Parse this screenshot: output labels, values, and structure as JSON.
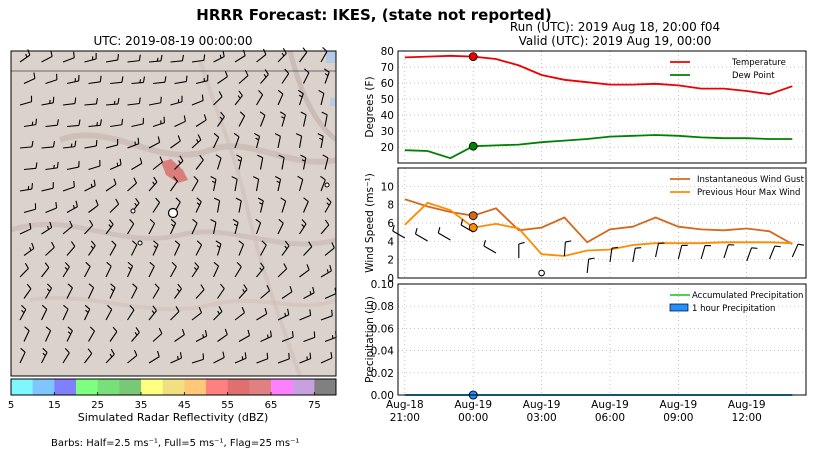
{
  "figure": {
    "title": "HRRR Forecast: IKES, (state not reported)",
    "run_line": "Run (UTC): 2019 Aug 18, 20:00 f04",
    "valid_line": "Valid (UTC): 2019 Aug 19, 00:00"
  },
  "map": {
    "title": "UTC: 2019-08-19 00:00:00",
    "colorbar_label": "Simulated Radar Reflectivity (dBZ)",
    "colorbar_ticks": [
      "5",
      "15",
      "25",
      "35",
      "45",
      "55",
      "65",
      "75"
    ],
    "colorbar_colors": [
      "#7ff7ff",
      "#7fc6ff",
      "#8080ff",
      "#7fff7f",
      "#78e078",
      "#78c878",
      "#ffff80",
      "#f0e080",
      "#ffc878",
      "#ff8080",
      "#e07070",
      "#e08080",
      "#ff80ff",
      "#c8a0e0",
      "#808080"
    ],
    "barb_note": "Barbs: Half=2.5 ms⁻¹, Full=5 ms⁻¹, Flag=25 ms⁻¹"
  },
  "x_tick_labels": [
    {
      "date": "Aug-18",
      "time": "21:00"
    },
    {
      "date": "Aug-19",
      "time": "00:00"
    },
    {
      "date": "Aug-19",
      "time": "03:00"
    },
    {
      "date": "Aug-19",
      "time": "06:00"
    },
    {
      "date": "Aug-19",
      "time": "09:00"
    },
    {
      "date": "Aug-19",
      "time": "12:00"
    }
  ],
  "colors": {
    "temperature": "#ee0000",
    "dew_point": "#008000",
    "gust": "#d2691e",
    "max_wind": "#ff8c00",
    "accum_precip": "#32cd32",
    "hourly_precip": "#1e90ff"
  },
  "chart_data": [
    {
      "type": "line",
      "ylabel": "Degrees (F)",
      "ylim": [
        10,
        80
      ],
      "yticks": [
        20,
        30,
        40,
        50,
        60,
        70,
        80
      ],
      "x": [
        -3,
        -2,
        -1,
        0,
        1,
        2,
        3,
        4,
        5,
        6,
        7,
        8,
        9,
        10,
        11,
        12,
        13,
        14
      ],
      "series": [
        {
          "name": "Temperature",
          "values": [
            76,
            76.5,
            77,
            76.5,
            75,
            71,
            65,
            62,
            60.5,
            59,
            59,
            59.5,
            58.5,
            56.5,
            56.5,
            55,
            53,
            58
          ]
        },
        {
          "name": "Dew Point",
          "values": [
            18,
            17.5,
            13,
            20.5,
            21,
            21.5,
            23,
            24,
            25,
            26.5,
            27,
            27.5,
            27,
            26,
            25.5,
            25.5,
            25,
            25
          ]
        }
      ],
      "marker_x": 0,
      "legend": "top-right",
      "grid": true
    },
    {
      "type": "line",
      "ylabel": "Wind Speed (ms⁻¹)",
      "ylim": [
        0,
        12
      ],
      "yticks": [
        0,
        2,
        4,
        6,
        8,
        10
      ],
      "x": [
        -3,
        -2,
        -1,
        0,
        1,
        2,
        3,
        4,
        5,
        6,
        7,
        8,
        9,
        10,
        11,
        12,
        13,
        14
      ],
      "series": [
        {
          "name": "Instantaneous Wind Gust",
          "values": [
            8.6,
            7.8,
            7.2,
            6.8,
            7.6,
            5.2,
            5.5,
            6.6,
            3.9,
            5.3,
            5.6,
            6.6,
            5.6,
            5.3,
            5.2,
            5.4,
            5.1,
            3.7
          ]
        },
        {
          "name": "Previous Hour Max Wind",
          "values": [
            5.8,
            8.2,
            7.4,
            5.5,
            5.9,
            5.4,
            2.6,
            2.4,
            3.0,
            3.1,
            3.6,
            3.8,
            3.8,
            3.8,
            3.9,
            3.9,
            3.9,
            3.8
          ]
        }
      ],
      "marker_x": 0,
      "legend": "top-right",
      "grid": true
    },
    {
      "type": "line",
      "ylabel": "Precipitation (in)",
      "ylim": [
        0,
        0.1
      ],
      "yticks": [
        "0.00",
        "0.02",
        "0.04",
        "0.06",
        "0.08",
        "0.10"
      ],
      "x": [
        -3,
        -2,
        -1,
        0,
        1,
        2,
        3,
        4,
        5,
        6,
        7,
        8,
        9,
        10,
        11,
        12,
        13,
        14
      ],
      "series": [
        {
          "name": "Accumulated Precipitation",
          "values": [
            0,
            0,
            0,
            0,
            0,
            0,
            0,
            0,
            0,
            0,
            0,
            0,
            0,
            0,
            0,
            0,
            0,
            0
          ]
        },
        {
          "name": "1 hour Precipitation",
          "values": [
            0,
            0,
            0,
            0,
            0,
            0,
            0,
            0,
            0,
            0,
            0,
            0,
            0,
            0,
            0,
            0,
            0,
            0
          ]
        }
      ],
      "marker_x": 0,
      "legend": "top-right",
      "grid": true
    }
  ]
}
